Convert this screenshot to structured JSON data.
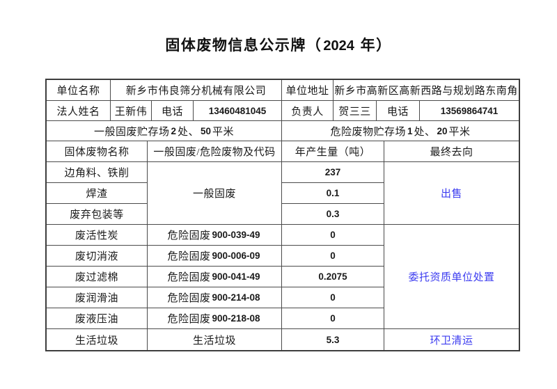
{
  "title": "固体废物信息公示牌（2024 年）",
  "colors": {
    "accent_blue": "#3c3cf0",
    "border": "#3d3d3d",
    "text": "#1a1a1a",
    "background": "#ffffff"
  },
  "info": {
    "unit_name_label": "单位名称",
    "unit_name": "新乡市伟良筛分机械有限公司",
    "unit_addr_label": "单位地址",
    "unit_addr": "新乡市高新区高新西路与规划路东南角",
    "legal_label": "法人姓名",
    "legal_name": "王新伟",
    "phone_label_1": "电话",
    "phone_1": "13460481045",
    "manager_label": "负责人",
    "manager_name": "贺三三",
    "phone_label_2": "电话",
    "phone_2": "13569864741",
    "general_storage": "一般固废贮存场 2 处、50 平米",
    "hazard_storage": "危险废物贮存场 1 处、20 平米"
  },
  "waste_table": {
    "headers": {
      "name": "固体废物名称",
      "code": "一般固废/危险废物及代码",
      "amount": "年产生量（吨）",
      "destination": "最终去向"
    },
    "general_group": {
      "type_label": "一般固废",
      "destination": "出售",
      "rows": [
        {
          "name": "边角料、铁削",
          "amount": "237"
        },
        {
          "name": "焊渣",
          "amount": "0.1"
        },
        {
          "name": "废弃包装等",
          "amount": "0.3"
        }
      ]
    },
    "hazard_group": {
      "destination": "委托资质单位处置",
      "rows": [
        {
          "name": "废活性炭",
          "code": "危险固废 900-039-49",
          "amount": "0"
        },
        {
          "name": "废切消液",
          "code": "危险固废 900-006-09",
          "amount": "0"
        },
        {
          "name": "废过滤棉",
          "code": "危险固废 900-041-49",
          "amount": "0.2075"
        },
        {
          "name": "废润滑油",
          "code": "危险固废 900-214-08",
          "amount": "0"
        },
        {
          "name": "废液压油",
          "code": "危险固废 900-218-08",
          "amount": "0"
        }
      ]
    },
    "household_row": {
      "name": "生活垃圾",
      "code": "生活垃圾",
      "amount": "5.3",
      "destination": "环卫清运"
    }
  }
}
